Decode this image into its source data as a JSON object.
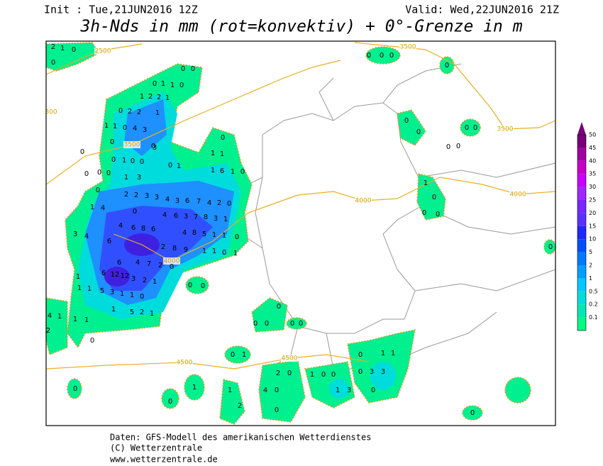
{
  "header": {
    "init": "Init : Tue,21JUN2016 12Z",
    "valid": "Valid: Wed,22JUN2016 21Z",
    "title": "3h-Nds in mm (rot=konvektiv) + 0°-Grenze in m"
  },
  "legend": {
    "labels": [
      50,
      45,
      40,
      35,
      30,
      25,
      20,
      15,
      10,
      5,
      2,
      1,
      0.5,
      0.2,
      0.1
    ],
    "colors": [
      "#780078",
      "#a000a0",
      "#c800c8",
      "#c800ff",
      "#a028ff",
      "#7828ff",
      "#5a32ff",
      "#1e28ff",
      "#0050ff",
      "#0078ff",
      "#00a0ff",
      "#00c8ff",
      "#00dcdc",
      "#00e6b4",
      "#00fa82"
    ]
  },
  "isotherm_labels": [
    2500,
    3500,
    300,
    3500,
    3500,
    4000,
    4000,
    4000,
    4500,
    4500
  ],
  "precip_labels": [
    "2",
    "1",
    "0",
    "0",
    "0",
    "0",
    "0",
    "1",
    "1",
    "0",
    "1",
    "2",
    "2",
    "1",
    "0",
    "2",
    "2",
    "1",
    "1",
    "1",
    "0",
    "4",
    "3",
    "0",
    "0",
    "3",
    "0",
    "0",
    "1",
    "0",
    "0",
    "0",
    "1",
    "0",
    "1",
    "1",
    "1",
    "6",
    "1",
    "0",
    "0",
    "0",
    "0",
    "1",
    "3",
    "0",
    "2",
    "2",
    "3",
    "3",
    "4",
    "3",
    "6",
    "7",
    "4",
    "2",
    "0",
    "1",
    "4",
    "0",
    "4",
    "6",
    "3",
    "7",
    "8",
    "3",
    "1",
    "3",
    "4",
    "4",
    "6",
    "8",
    "6",
    "4",
    "8",
    "5",
    "1",
    "1",
    "0",
    "6",
    "2",
    "8",
    "9",
    "1",
    "1",
    "0",
    "1",
    "6",
    "4",
    "7",
    "2",
    "0",
    "6",
    "12",
    "12",
    "1",
    "3",
    "2",
    "1",
    "1",
    "1",
    "5",
    "3",
    "1",
    "1",
    "0",
    "1",
    "5",
    "2",
    "1",
    "1",
    "1",
    "0",
    "4",
    "1",
    "2",
    "0",
    "0",
    "0",
    "0",
    "0",
    "0",
    "0",
    "0",
    "0",
    "0",
    "0",
    "0",
    "1",
    "0",
    "0",
    "0",
    "0",
    "0",
    "0",
    "0",
    "0",
    "0",
    "0",
    "1",
    "0",
    "1",
    "1",
    "2",
    "0",
    "1",
    "0",
    "0",
    "0",
    "3",
    "3",
    "0",
    "4",
    "1",
    "3",
    "0",
    "0",
    "1",
    "1",
    "0",
    "0",
    "0",
    "2"
  ],
  "footer": {
    "source": "Daten: GFS-Modell des amerikanischen Wetterdienstes",
    "copyright": "(C) Wetterzentrale",
    "url": "www.wetterzentrale.de"
  }
}
